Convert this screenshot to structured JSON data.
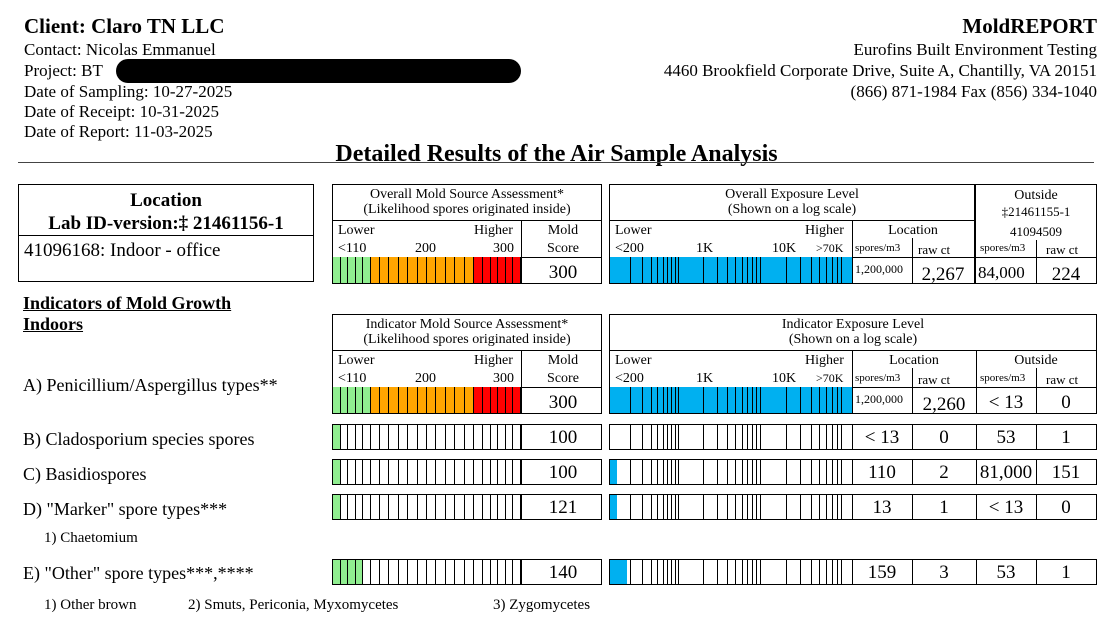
{
  "header": {
    "client": "Client: Claro TN LLC",
    "contact": "Contact: Nicolas Emmanuel",
    "project": "Project: BT",
    "sampling": "Date of Sampling: 10-27-2025",
    "receipt": "Date of Receipt: 10-31-2025",
    "report": "Date of Report: 11-03-2025",
    "brand": "MoldREPORT",
    "lab_name": "Eurofins Built Environment Testing",
    "lab_address": "4460 Brookfield Corporate Drive, Suite A, Chantilly, VA 20151",
    "lab_phone": "(866) 871-1984 Fax (856) 334-1040"
  },
  "title": "Detailed Results of the Air Sample Analysis",
  "location_box": {
    "heading": "Location",
    "labid_label": "Lab ID-version:‡ 21461156-1",
    "location_value": "41096168: Indoor - office"
  },
  "overall_source": {
    "title1": "Overall Mold Source Assessment*",
    "title2": "(Likelihood spores originated inside)",
    "lower": "Lower",
    "higher": "Higher",
    "mold": "Mold",
    "score_label": "Score",
    "t1": "<110",
    "t2": "200",
    "t3": "300",
    "score": "300"
  },
  "overall_exposure": {
    "title1": "Overall Exposure Level",
    "title2": "(Shown on a log scale)",
    "lower": "Lower",
    "higher": "Higher",
    "t1": "<200",
    "t2": "1K",
    "t3": "10K",
    "t4": ">70K",
    "location": "Location",
    "spores_label": "spores/m3",
    "raw_label": "raw ct",
    "spores": "1,200,000",
    "raw": "2,267"
  },
  "outside": {
    "title": "Outside",
    "labid": "‡21461155-1",
    "sample": "41094509",
    "spores_label": "spores/m3",
    "raw_label": "raw ct",
    "spores": "84,000",
    "raw": "224"
  },
  "indicators_heading1": "Indicators of Mold Growth",
  "indicators_heading2": "Indoors",
  "indicator_source": {
    "title1": "Indicator Mold Source Assessment*",
    "title2": "(Likelihood spores originated inside)",
    "lower": "Lower",
    "higher": "Higher",
    "mold": "Mold",
    "score_label": "Score",
    "t1": "<110",
    "t2": "200",
    "t3": "300"
  },
  "indicator_exposure": {
    "title1": "Indicator Exposure Level",
    "title2": "(Shown on a log scale)",
    "lower": "Lower",
    "higher": "Higher",
    "t1": "<200",
    "t2": "1K",
    "t3": "10K",
    "t4": ">70K",
    "location": "Location",
    "outside": "Outside",
    "spores_label": "spores/m3",
    "raw_label": "raw ct",
    "spores_label2": "spores/m3",
    "raw_label2": "raw ct"
  },
  "rows": [
    {
      "label": "A) Penicillium/Aspergillus types**",
      "score": "300",
      "score_fraction": 1.0,
      "exposure_fraction": 1.0,
      "loc_spores": "1,200,000",
      "loc_raw": "2,260",
      "out_spores": "< 13",
      "out_raw": "0"
    },
    {
      "label": "B) Cladosporium species spores",
      "score": "100",
      "score_fraction": 0.04,
      "exposure_fraction": 0.0,
      "loc_spores": "< 13",
      "loc_raw": "0",
      "out_spores": "53",
      "out_raw": "1"
    },
    {
      "label": "C) Basidiospores",
      "score": "100",
      "score_fraction": 0.04,
      "exposure_fraction": 0.03,
      "loc_spores": "110",
      "loc_raw": "2",
      "out_spores": "81,000",
      "out_raw": "151"
    },
    {
      "label": "D) \"Marker\" spore types***",
      "score": "121",
      "score_fraction": 0.04,
      "exposure_fraction": 0.03,
      "loc_spores": "13",
      "loc_raw": "1",
      "out_spores": "< 13",
      "out_raw": "0"
    },
    {
      "label": "E) \"Other\" spore types***,****",
      "score": "140",
      "score_fraction": 0.16,
      "exposure_fraction": 0.07,
      "loc_spores": "159",
      "loc_raw": "3",
      "out_spores": "53",
      "out_raw": "1"
    }
  ],
  "marker_sub": "1) Chaetomium",
  "other_sub1": "1) Other brown",
  "other_sub2": "2) Smuts, Periconia, Myxomycetes",
  "other_sub3": "3) Zygomycetes",
  "colors": {
    "green": "#90ee90",
    "orange": "#ffa500",
    "red": "#ff0000",
    "blue": "#00b0f0"
  }
}
